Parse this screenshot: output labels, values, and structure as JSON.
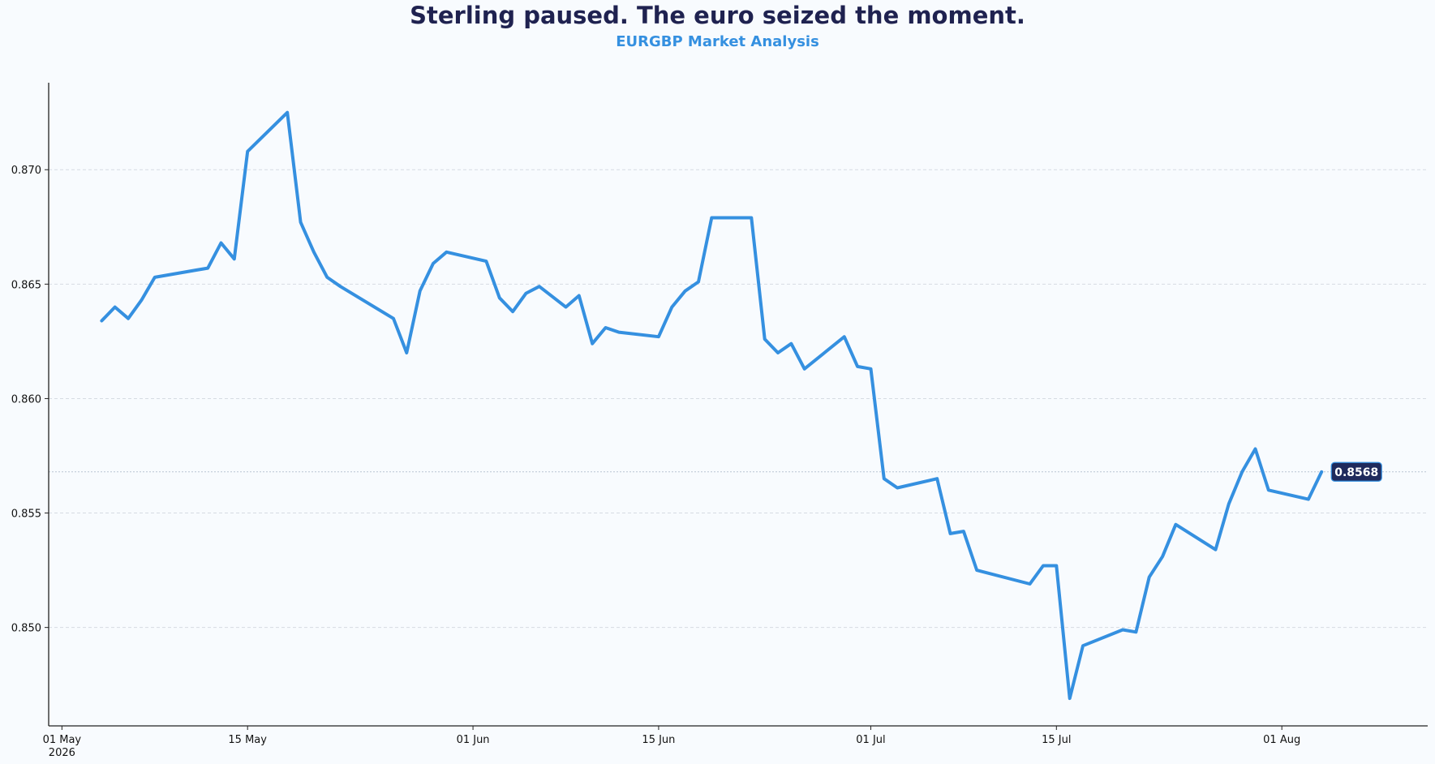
{
  "chart_data": {
    "type": "line",
    "title": "Sterling paused. The euro seized the moment.",
    "subtitle": "EURGBP Market Analysis",
    "xlabel": "",
    "ylabel": "",
    "xlim": [
      "2026-04-30",
      "2026-08-12"
    ],
    "ylim": [
      0.8457,
      0.8738
    ],
    "x_ticks": [
      {
        "date": "2026-05-01",
        "label": "01 May",
        "sublabel": "2026"
      },
      {
        "date": "2026-05-15",
        "label": "15 May"
      },
      {
        "date": "2026-06-01",
        "label": "01 Jun"
      },
      {
        "date": "2026-06-15",
        "label": "15 Jun"
      },
      {
        "date": "2026-07-01",
        "label": "01 Jul"
      },
      {
        "date": "2026-07-15",
        "label": "15 Jul"
      },
      {
        "date": "2026-08-01",
        "label": "01 Aug"
      }
    ],
    "y_ticks": [
      {
        "value": 0.85,
        "label": "0.850"
      },
      {
        "value": 0.855,
        "label": "0.855"
      },
      {
        "value": 0.86,
        "label": "0.860"
      },
      {
        "value": 0.865,
        "label": "0.865"
      },
      {
        "value": 0.87,
        "label": "0.870"
      }
    ],
    "grid": "horizontal dashed",
    "legend": "none",
    "last_value_label": "0.8568",
    "last_value": 0.8568,
    "colors": {
      "line": "#3590e0",
      "title": "#1f2250",
      "subtitle": "#3590e0",
      "badge": "#1f2a5c",
      "grid": "#d6dbe2"
    },
    "series": [
      {
        "x": [
          "2026-05-04",
          "2026-05-05",
          "2026-05-06",
          "2026-05-07",
          "2026-05-08",
          "2026-05-11",
          "2026-05-12",
          "2026-05-13",
          "2026-05-14",
          "2026-05-15",
          "2026-05-18",
          "2026-05-19",
          "2026-05-20",
          "2026-05-21",
          "2026-05-22",
          "2026-05-26",
          "2026-05-27",
          "2026-05-28",
          "2026-05-29",
          "2026-05-30",
          "2026-06-02",
          "2026-06-03",
          "2026-06-04",
          "2026-06-05",
          "2026-06-06",
          "2026-06-08",
          "2026-06-09",
          "2026-06-10",
          "2026-06-11",
          "2026-06-12",
          "2026-06-15",
          "2026-06-16",
          "2026-06-17",
          "2026-06-18",
          "2026-06-19",
          "2026-06-22",
          "2026-06-23",
          "2026-06-24",
          "2026-06-25",
          "2026-06-26",
          "2026-06-29",
          "2026-06-30",
          "2026-07-01",
          "2026-07-02",
          "2026-07-03",
          "2026-07-06",
          "2026-07-07",
          "2026-07-08",
          "2026-07-09",
          "2026-07-13",
          "2026-07-14",
          "2026-07-15",
          "2026-07-16",
          "2026-07-17",
          "2026-07-20",
          "2026-07-21",
          "2026-07-22",
          "2026-07-23",
          "2026-07-24",
          "2026-07-27",
          "2026-07-28",
          "2026-07-29",
          "2026-07-30",
          "2026-07-31",
          "2026-08-03",
          "2026-08-04"
        ],
        "y": [
          0.8634,
          0.864,
          0.8635,
          0.8643,
          0.8653,
          0.8656,
          0.8657,
          0.8668,
          0.8661,
          0.8708,
          0.8725,
          0.8677,
          0.8664,
          0.8653,
          0.8649,
          0.8635,
          0.862,
          0.8647,
          0.8659,
          0.8664,
          0.866,
          0.8644,
          0.8638,
          0.8646,
          0.8649,
          0.864,
          0.8645,
          0.8624,
          0.8631,
          0.8629,
          0.8627,
          0.864,
          0.8647,
          0.8651,
          0.8679,
          0.8679,
          0.8626,
          0.862,
          0.8624,
          0.8613,
          0.8627,
          0.8614,
          0.8613,
          0.8565,
          0.8561,
          0.8565,
          0.8541,
          0.8542,
          0.8525,
          0.8519,
          0.8527,
          0.8527,
          0.8469,
          0.8492,
          0.8499,
          0.8498,
          0.8522,
          0.8531,
          0.8545,
          0.8534,
          0.8554,
          0.8568,
          0.8578,
          0.856,
          0.8556,
          0.8568
        ]
      }
    ]
  }
}
